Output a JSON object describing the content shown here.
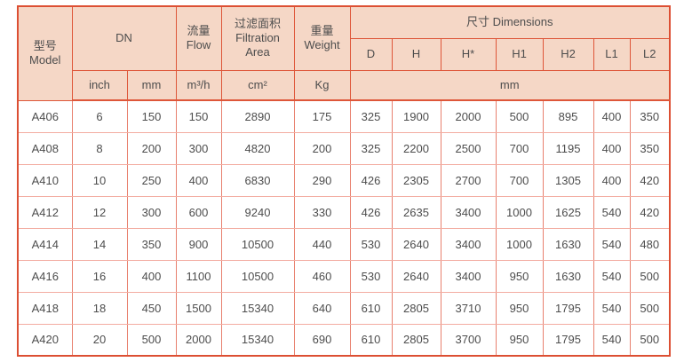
{
  "table": {
    "header": {
      "model": "型号\nModel",
      "dn": "DN",
      "flow": "流量\nFlow",
      "filtration_area": "过滤面积\nFiltration\nArea",
      "weight": "重量\nWeight",
      "dimensions": "尺寸 Dimensions",
      "dim_columns": [
        "D",
        "H",
        "H*",
        "H1",
        "H2",
        "L1",
        "L2"
      ],
      "units": {
        "inch": "inch",
        "mm": "mm",
        "flow": "m³/h",
        "filtration_area": "cm²",
        "weight": "Kg",
        "dimensions_mm": "mm"
      }
    },
    "rows": [
      {
        "model": "A406",
        "dn_inch": "6",
        "dn_mm": "150",
        "flow": "150",
        "filtration_area": "2890",
        "weight": "175",
        "d": "325",
        "h": "1900",
        "h_star": "2000",
        "h1": "500",
        "h2": "895",
        "l1": "400",
        "l2": "350"
      },
      {
        "model": "A408",
        "dn_inch": "8",
        "dn_mm": "200",
        "flow": "300",
        "filtration_area": "4820",
        "weight": "200",
        "d": "325",
        "h": "2200",
        "h_star": "2500",
        "h1": "700",
        "h2": "1195",
        "l1": "400",
        "l2": "350"
      },
      {
        "model": "A410",
        "dn_inch": "10",
        "dn_mm": "250",
        "flow": "400",
        "filtration_area": "6830",
        "weight": "290",
        "d": "426",
        "h": "2305",
        "h_star": "2700",
        "h1": "700",
        "h2": "1305",
        "l1": "400",
        "l2": "420"
      },
      {
        "model": "A412",
        "dn_inch": "12",
        "dn_mm": "300",
        "flow": "600",
        "filtration_area": "9240",
        "weight": "330",
        "d": "426",
        "h": "2635",
        "h_star": "3400",
        "h1": "1000",
        "h2": "1625",
        "l1": "540",
        "l2": "420"
      },
      {
        "model": "A414",
        "dn_inch": "14",
        "dn_mm": "350",
        "flow": "900",
        "filtration_area": "10500",
        "weight": "440",
        "d": "530",
        "h": "2640",
        "h_star": "3400",
        "h1": "1000",
        "h2": "1630",
        "l1": "540",
        "l2": "480"
      },
      {
        "model": "A416",
        "dn_inch": "16",
        "dn_mm": "400",
        "flow": "1100",
        "filtration_area": "10500",
        "weight": "460",
        "d": "530",
        "h": "2640",
        "h_star": "3400",
        "h1": "950",
        "h2": "1630",
        "l1": "540",
        "l2": "500"
      },
      {
        "model": "A418",
        "dn_inch": "18",
        "dn_mm": "450",
        "flow": "1500",
        "filtration_area": "15340",
        "weight": "640",
        "d": "610",
        "h": "2805",
        "h_star": "3710",
        "h1": "950",
        "h2": "1795",
        "l1": "540",
        "l2": "500"
      },
      {
        "model": "A420",
        "dn_inch": "20",
        "dn_mm": "500",
        "flow": "2000",
        "filtration_area": "15340",
        "weight": "690",
        "d": "610",
        "h": "2805",
        "h_star": "3700",
        "h1": "950",
        "h2": "1795",
        "l1": "540",
        "l2": "500"
      }
    ]
  },
  "colors": {
    "header_bg": "#f5d7c6",
    "border_strong": "#de5639",
    "border_outer": "#dc4f33",
    "border_vertical": "#e8806e",
    "border_horizontal": "#f3aca1",
    "text": "#4d4d4d"
  }
}
